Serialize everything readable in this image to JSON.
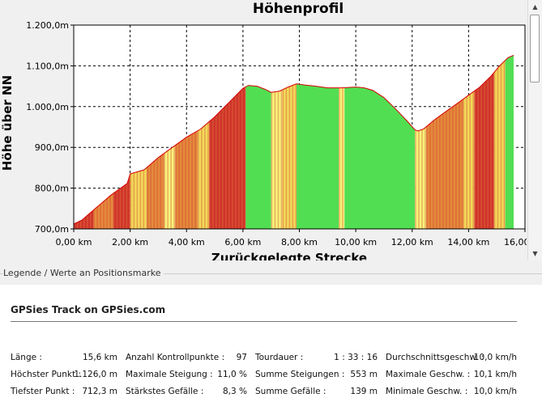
{
  "chart_data": {
    "type": "area",
    "title": "Höhenprofil",
    "xlabel": "Zurückgelegte Strecke",
    "ylabel": "Höhe über NN",
    "xlim": [
      0,
      16
    ],
    "ylim": [
      700,
      1200
    ],
    "x_ticks": [
      0,
      2,
      4,
      6,
      8,
      10,
      12,
      14,
      16
    ],
    "x_tick_labels": [
      "0,00 km",
      "2,00 km",
      "4,00 km",
      "6,00 km",
      "8,00 km",
      "10,00 km",
      "12,00 km",
      "14,00 km",
      "16,00 km"
    ],
    "y_ticks": [
      700,
      800,
      900,
      1000,
      1100,
      1200
    ],
    "y_tick_labels": [
      "700,0m",
      "800,0m",
      "900,0m",
      "1.000,0m",
      "1.100,0m",
      "1.200,0m"
    ],
    "grid": true,
    "x": [
      0,
      0.3,
      0.8,
      1.3,
      1.9,
      2.0,
      2.5,
      3.0,
      3.5,
      4.0,
      4.5,
      5.0,
      5.5,
      6.0,
      6.2,
      6.5,
      6.8,
      7.0,
      7.3,
      7.6,
      7.9,
      8.2,
      8.6,
      9.0,
      9.5,
      10.0,
      10.3,
      10.6,
      11.0,
      11.4,
      11.8,
      12.1,
      12.2,
      12.4,
      12.8,
      13.2,
      13.6,
      14.0,
      14.4,
      14.8,
      15.1,
      15.4,
      15.6
    ],
    "y": [
      712,
      722,
      752,
      782,
      812,
      835,
      845,
      875,
      900,
      925,
      945,
      975,
      1010,
      1045,
      1052,
      1050,
      1042,
      1035,
      1038,
      1048,
      1056,
      1053,
      1050,
      1046,
      1046,
      1048,
      1046,
      1040,
      1022,
      995,
      966,
      943,
      940,
      945,
      968,
      988,
      1008,
      1028,
      1048,
      1075,
      1100,
      1120,
      1126
    ],
    "color_by": "Steigung",
    "colors": {
      "line": "#d40000",
      "steep_up": "#d0342c",
      "up": "#e48a3c",
      "moderate": "#f2d95a",
      "flat": "#f7f37a",
      "down": "#52de52"
    },
    "gradient_bands": [
      {
        "from": 0.0,
        "to": 0.7,
        "class": "steep_up"
      },
      {
        "from": 0.7,
        "to": 1.4,
        "class": "up"
      },
      {
        "from": 1.4,
        "to": 2.0,
        "class": "steep_up"
      },
      {
        "from": 2.0,
        "to": 2.6,
        "class": "moderate"
      },
      {
        "from": 2.6,
        "to": 3.2,
        "class": "up"
      },
      {
        "from": 3.2,
        "to": 3.6,
        "class": "flat"
      },
      {
        "from": 3.6,
        "to": 4.4,
        "class": "up"
      },
      {
        "from": 4.4,
        "to": 4.8,
        "class": "moderate"
      },
      {
        "from": 4.8,
        "to": 6.1,
        "class": "steep_up"
      },
      {
        "from": 6.1,
        "to": 7.0,
        "class": "down"
      },
      {
        "from": 7.0,
        "to": 7.4,
        "class": "flat"
      },
      {
        "from": 7.4,
        "to": 7.9,
        "class": "moderate"
      },
      {
        "from": 7.9,
        "to": 9.4,
        "class": "down"
      },
      {
        "from": 9.4,
        "to": 9.6,
        "class": "flat"
      },
      {
        "from": 9.6,
        "to": 12.1,
        "class": "down"
      },
      {
        "from": 12.1,
        "to": 12.5,
        "class": "flat"
      },
      {
        "from": 12.5,
        "to": 13.8,
        "class": "up"
      },
      {
        "from": 13.8,
        "to": 14.2,
        "class": "moderate"
      },
      {
        "from": 14.2,
        "to": 14.9,
        "class": "steep_up"
      },
      {
        "from": 14.9,
        "to": 15.3,
        "class": "moderate"
      },
      {
        "from": 15.3,
        "to": 15.6,
        "class": "down"
      }
    ]
  },
  "legend": {
    "header": "Legende / Werte an Positionsmarke",
    "track_title": "GPSies Track on GPSies.com",
    "stats": [
      [
        {
          "label": "Länge :",
          "value": "15,6 km"
        },
        {
          "label": "Höchster Punkt :",
          "value": "1.126,0 m"
        },
        {
          "label": "Tiefster Punkt :",
          "value": "712,3 m"
        }
      ],
      [
        {
          "label": "Anzahl Kontrollpunkte :",
          "value": "97"
        },
        {
          "label": "Maximale Steigung :",
          "value": "11,0 %"
        },
        {
          "label": "Stärkstes Gefälle :",
          "value": "8,3 %"
        }
      ],
      [
        {
          "label": "Tourdauer :",
          "value": "1 : 33 : 16"
        },
        {
          "label": "Summe Steigungen :",
          "value": "553 m"
        },
        {
          "label": "Summe Gefälle :",
          "value": "139 m"
        }
      ],
      [
        {
          "label": "Durchschnittsgeschw. :",
          "value": "10,0 km/h"
        },
        {
          "label": "Maximale Geschw. :",
          "value": "10,1 km/h"
        },
        {
          "label": "Minimale Geschw. :",
          "value": "10,0 km/h"
        }
      ]
    ]
  },
  "scrollbar": {
    "up_icon": "triangle-up-icon",
    "down_icon": "triangle-down-icon"
  }
}
